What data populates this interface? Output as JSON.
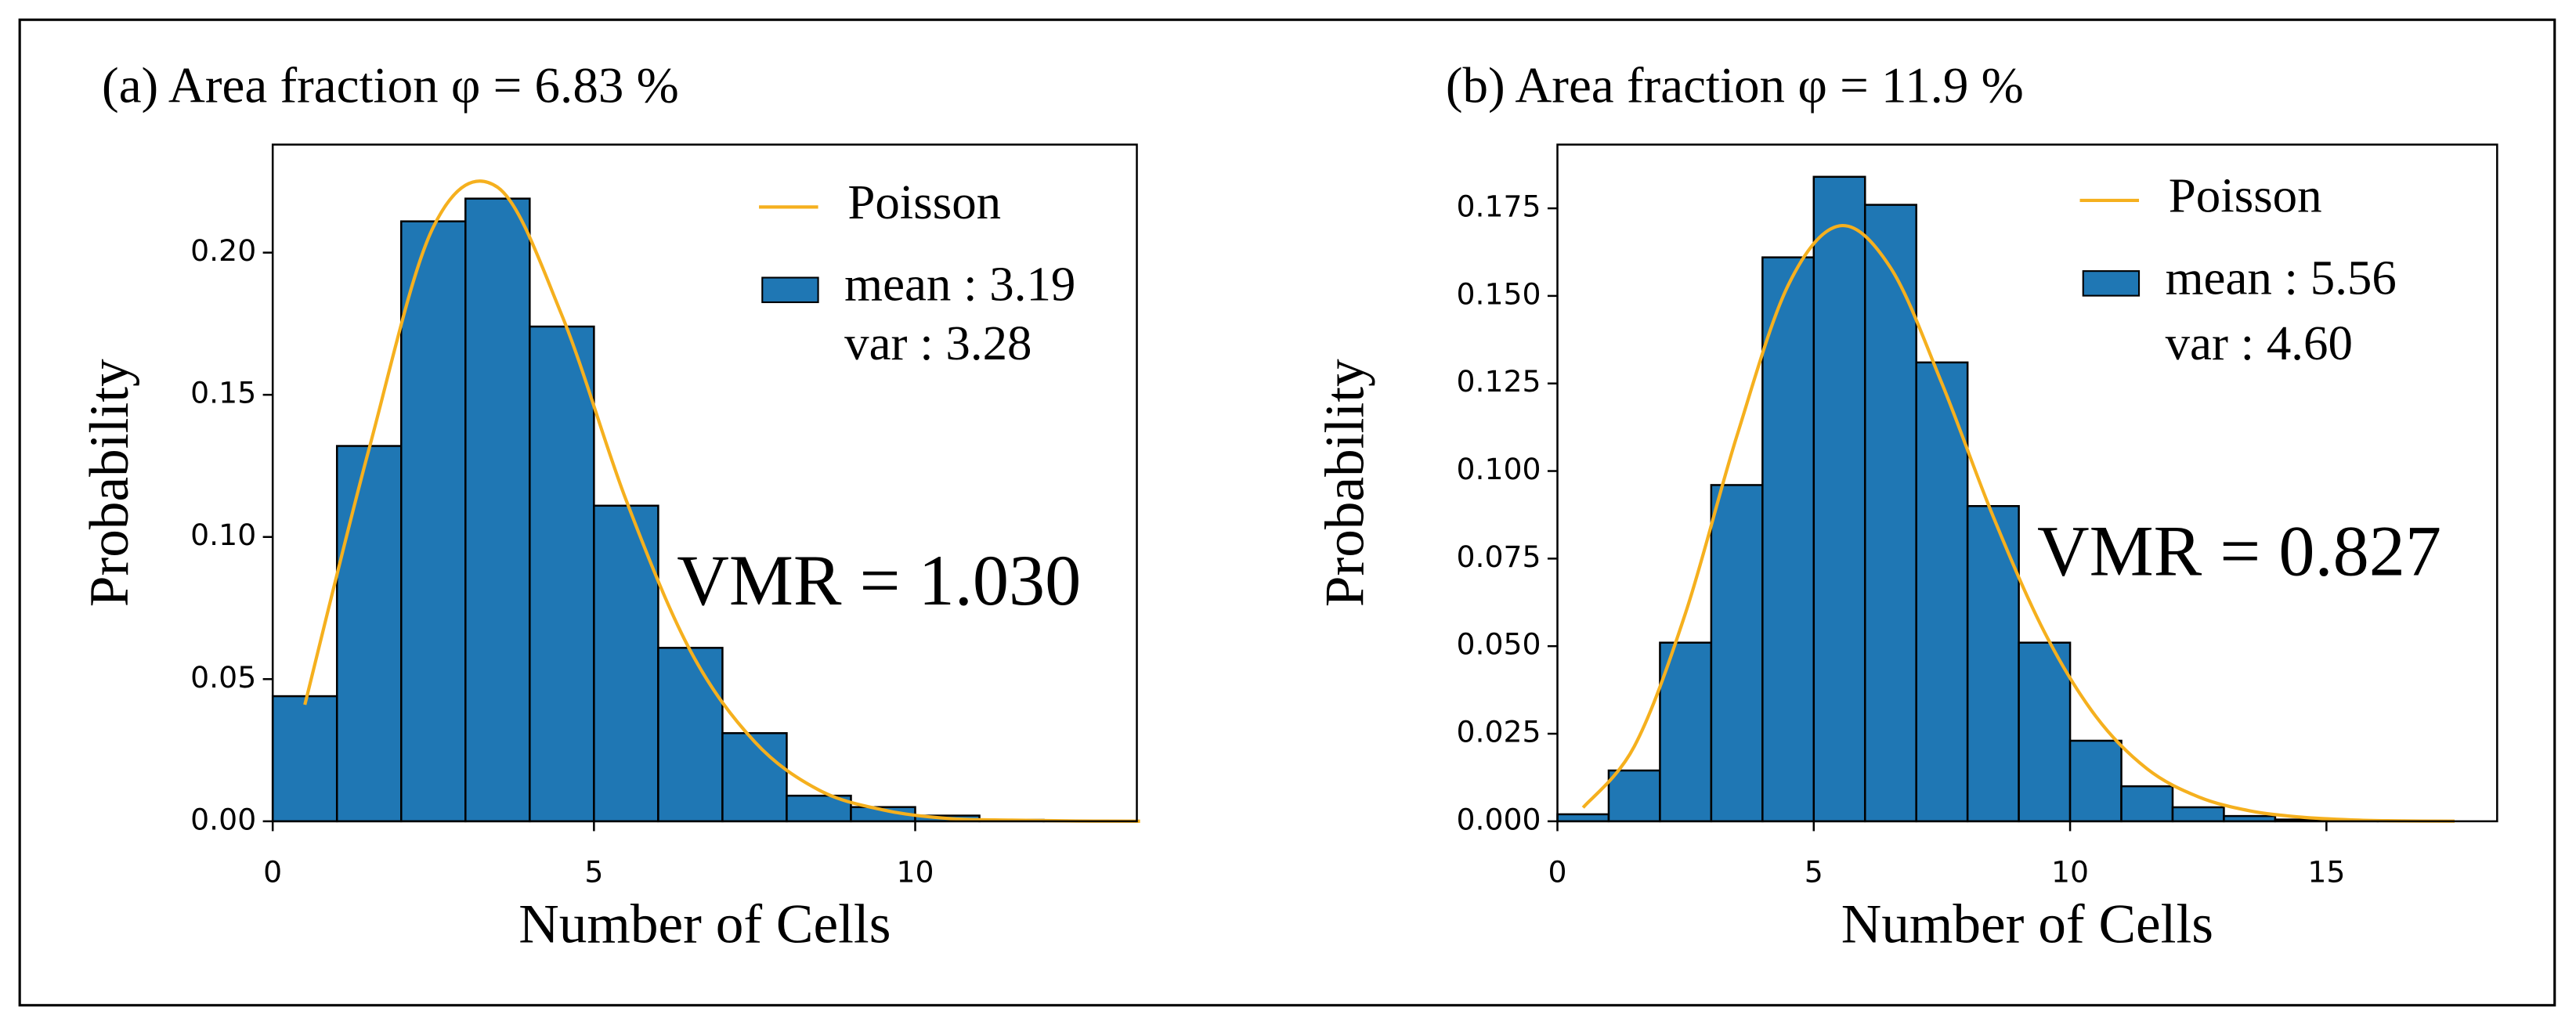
{
  "chart_data": [
    {
      "type": "histogram",
      "title": "(a) Area fraction φ = 6.83 %",
      "xlabel": "Number of Cells",
      "ylabel": "Probability",
      "bins": [
        0,
        1,
        2,
        3,
        4,
        5,
        6,
        7,
        8,
        9,
        10,
        11,
        12,
        13
      ],
      "values": [
        0.044,
        0.132,
        0.211,
        0.219,
        0.174,
        0.111,
        0.061,
        0.031,
        0.009,
        0.005,
        0.002,
        0.0005,
        0.0002
      ],
      "color": "#1f77b4",
      "name": "mean : 3.19",
      "legend_note": "var : 3.28",
      "curve": {
        "name": "Poisson",
        "color": "#f5b01e",
        "x": [
          0.5,
          1.5,
          2.5,
          3.5,
          4.5,
          5.5,
          6.5,
          7.5,
          8.5,
          9.5,
          10.5,
          11.5,
          12.5,
          13.5
        ],
        "values": [
          0.041,
          0.131,
          0.209,
          0.223,
          0.178,
          0.113,
          0.06,
          0.028,
          0.011,
          0.004,
          0.001,
          0.0004,
          0.0001,
          3e-05
        ]
      },
      "annotation": "VMR = 1.030",
      "xlim": [
        0,
        13.45
      ],
      "ylim": [
        0,
        0.238
      ],
      "xticks": [
        0,
        5,
        10
      ],
      "yticks": [
        {
          "value": 0,
          "label": "0.00"
        },
        {
          "value": 0.05,
          "label": "0.05"
        },
        {
          "value": 0.1,
          "label": "0.10"
        },
        {
          "value": 0.15,
          "label": "0.15"
        },
        {
          "value": 0.2,
          "label": "0.20"
        }
      ]
    },
    {
      "type": "histogram",
      "title": "(b) Area fraction φ = 11.9 %",
      "xlabel": "Number of Cells",
      "ylabel": "Probability",
      "bins": [
        0,
        1,
        2,
        3,
        4,
        5,
        6,
        7,
        8,
        9,
        10,
        11,
        12,
        13,
        14,
        15,
        16,
        17
      ],
      "values": [
        0.002,
        0.0145,
        0.051,
        0.096,
        0.161,
        0.184,
        0.176,
        0.131,
        0.09,
        0.051,
        0.023,
        0.01,
        0.004,
        0.0015,
        0.0005,
        0.0002,
        0.0001
      ],
      "color": "#1f77b4",
      "name": "mean : 5.56",
      "legend_note": "var : 4.60",
      "curve": {
        "name": "Poisson",
        "color": "#f5b01e",
        "x": [
          0.5,
          1.5,
          2.5,
          3.5,
          4.5,
          5.5,
          6.5,
          7.5,
          8.5,
          9.5,
          10.5,
          11.5,
          12.5,
          13.5,
          14.5,
          15.5,
          16.5,
          17.5
        ],
        "values": [
          0.0039,
          0.0214,
          0.0595,
          0.11,
          0.153,
          0.17,
          0.158,
          0.125,
          0.087,
          0.054,
          0.03,
          0.015,
          0.007,
          0.003,
          0.0012,
          0.0004,
          0.0001,
          4e-05
        ]
      },
      "annotation": "VMR = 0.827",
      "xlim": [
        0,
        18.33
      ],
      "ylim": [
        0,
        0.1932
      ],
      "xticks": [
        0,
        5,
        10,
        15
      ],
      "yticks": [
        {
          "value": 0,
          "label": "0.000"
        },
        {
          "value": 0.025,
          "label": "0.025"
        },
        {
          "value": 0.05,
          "label": "0.050"
        },
        {
          "value": 0.075,
          "label": "0.075"
        },
        {
          "value": 0.1,
          "label": "0.100"
        },
        {
          "value": 0.125,
          "label": "0.125"
        },
        {
          "value": 0.15,
          "label": "0.150"
        },
        {
          "value": 0.175,
          "label": "0.175"
        }
      ]
    }
  ]
}
